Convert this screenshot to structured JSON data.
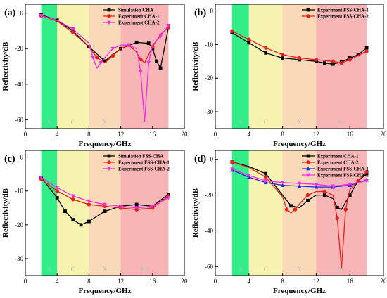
{
  "figure": {
    "band_colors": [
      "#33ee88",
      "#f6f2b0",
      "#f9d9b7",
      "#f7b5b5"
    ],
    "band_labels": [
      "S",
      "C",
      "X",
      "Ku"
    ],
    "chart_data": [
      {
        "type": "line",
        "panel_label": "(a)",
        "xlabel": "Frequency/GHz",
        "ylabel": "Reflectivity/dB",
        "xlim": [
          0,
          20
        ],
        "ylim": [
          -65,
          5
        ],
        "xticks": [
          0,
          4,
          8,
          12,
          16,
          20
        ],
        "yticks": [
          0,
          -20,
          -40,
          -60
        ],
        "bands": [
          [
            2,
            4
          ],
          [
            4,
            8
          ],
          [
            8,
            12
          ],
          [
            12,
            18
          ]
        ],
        "legend_position": "top-right",
        "grid": false,
        "series": [
          {
            "name": "Simulation CHA",
            "color": "#000000",
            "marker": "square",
            "x": [
              2,
              4,
              6,
              8,
              10,
              12,
              14,
              15.5,
              16,
              16.5,
              17,
              18
            ],
            "y": [
              -1,
              -4,
              -10,
              -19,
              -27,
              -20,
              -16.5,
              -17,
              -20,
              -27,
              -31,
              -8
            ]
          },
          {
            "name": "Experiment CHA-1",
            "color": "#e8201a",
            "marker": "circle",
            "x": [
              2,
              4,
              6,
              8,
              9,
              10,
              11,
              12,
              13,
              14,
              14.5,
              15,
              16,
              17,
              18
            ],
            "y": [
              -1.5,
              -4.5,
              -11,
              -19,
              -25,
              -28,
              -24,
              -20,
              -18,
              -22,
              -26,
              -28,
              -19,
              -12,
              -8
            ]
          },
          {
            "name": "Experiment CHA-2",
            "color": "#f22be8",
            "marker": "triangle-down",
            "x": [
              2,
              4,
              6,
              8,
              8.5,
              9,
              9.5,
              10,
              11,
              12,
              13,
              14,
              14.5,
              15,
              15.5,
              16,
              17,
              18
            ],
            "y": [
              -1.5,
              -4,
              -9,
              -17,
              -25,
              -31,
              -28,
              -25,
              -20,
              -18,
              -18,
              -20,
              -33,
              -61,
              -28,
              -18,
              -13,
              -7
            ]
          }
        ]
      },
      {
        "type": "line",
        "panel_label": "(b)",
        "xlabel": "Frequency/GHz",
        "ylabel": "Reflectivity/dB",
        "xlim": [
          0,
          20
        ],
        "ylim": [
          -35,
          2
        ],
        "xticks": [
          0,
          4,
          8,
          12,
          16,
          20
        ],
        "yticks": [
          0,
          -10,
          -20,
          -30
        ],
        "bands": [
          [
            2,
            4
          ],
          [
            4,
            8
          ],
          [
            8,
            12
          ],
          [
            12,
            18
          ]
        ],
        "legend_position": "top-right",
        "grid": false,
        "series": [
          {
            "name": "Experiment FSS-CHA-1",
            "color": "#000000",
            "marker": "square",
            "x": [
              2,
              4,
              6,
              8,
              10,
              12,
              13,
              14,
              15,
              16,
              17,
              18
            ],
            "y": [
              -6.5,
              -9.5,
              -12.5,
              -14,
              -14.5,
              -15,
              -15.5,
              -15.8,
              -15.2,
              -14,
              -13,
              -11
            ]
          },
          {
            "name": "Experiment FSS-CHA-2",
            "color": "#e8201a",
            "marker": "circle",
            "x": [
              2,
              4,
              6,
              8,
              10,
              12,
              14,
              15,
              16,
              18
            ],
            "y": [
              -6,
              -8.5,
              -11,
              -13,
              -14,
              -14.5,
              -15,
              -15.5,
              -14.5,
              -12
            ]
          }
        ]
      },
      {
        "type": "line",
        "panel_label": "(c)",
        "xlabel": "Frequency/GHz",
        "ylabel": "Reflectivity/dB",
        "xlim": [
          0,
          20
        ],
        "ylim": [
          -35,
          2
        ],
        "xticks": [
          0,
          4,
          8,
          12,
          16,
          20
        ],
        "yticks": [
          0,
          -10,
          -20,
          -30
        ],
        "bands": [
          [
            2,
            4
          ],
          [
            4,
            8
          ],
          [
            8,
            12
          ],
          [
            12,
            18
          ]
        ],
        "legend_position": "top-right",
        "grid": false,
        "series": [
          {
            "name": "Simulation FSS-CHA",
            "color": "#000000",
            "marker": "square",
            "x": [
              2,
              4,
              5,
              6,
              7,
              8,
              10,
              12,
              14,
              16,
              18
            ],
            "y": [
              -6,
              -12,
              -16,
              -18.5,
              -20,
              -19,
              -16,
              -14.5,
              -14,
              -14.5,
              -11
            ]
          },
          {
            "name": "Experiment FSS-CHA-1",
            "color": "#e8201a",
            "marker": "circle",
            "x": [
              2,
              4,
              6,
              8,
              10,
              12,
              14,
              16,
              18
            ],
            "y": [
              -6.5,
              -10,
              -12.5,
              -14,
              -14.5,
              -15,
              -15.5,
              -15,
              -11.5
            ]
          },
          {
            "name": "Experiment FSS-CHA-2",
            "color": "#f22be8",
            "marker": "triangle-down",
            "x": [
              2,
              4,
              6,
              8,
              10,
              12,
              14,
              16,
              18
            ],
            "y": [
              -6,
              -9,
              -11.5,
              -13,
              -14,
              -14.5,
              -15,
              -14.5,
              -12
            ]
          }
        ]
      },
      {
        "type": "line",
        "panel_label": "(d)",
        "xlabel": "Frequency/GHz",
        "ylabel": "Reflectivity/dB",
        "xlim": [
          0,
          20
        ],
        "ylim": [
          -65,
          5
        ],
        "xticks": [
          0,
          4,
          8,
          12,
          16,
          20
        ],
        "yticks": [
          0,
          -20,
          -40,
          -60
        ],
        "bands": [
          [
            2,
            4
          ],
          [
            4,
            8
          ],
          [
            8,
            12
          ],
          [
            12,
            18
          ]
        ],
        "legend_position": "top-right",
        "grid": false,
        "series": [
          {
            "name": "Experiment CHA-1",
            "color": "#000000",
            "marker": "square",
            "x": [
              2,
              4,
              6,
              8,
              9,
              10,
              11,
              12,
              13,
              14,
              14.5,
              15,
              16,
              17,
              18
            ],
            "y": [
              -1.5,
              -4,
              -8,
              -20,
              -26,
              -27,
              -23,
              -20,
              -20,
              -22,
              -27,
              -28,
              -20,
              -12,
              -8
            ]
          },
          {
            "name": "Experiment CHA-2",
            "color": "#e8201a",
            "marker": "circle",
            "x": [
              2,
              4,
              6,
              8,
              8.5,
              9,
              9.5,
              10,
              11,
              12,
              13,
              14,
              14.5,
              15,
              15.5,
              16,
              17,
              18
            ],
            "y": [
              -1.5,
              -4.5,
              -10,
              -21,
              -28,
              -30,
              -28,
              -25,
              -20,
              -18,
              -18,
              -20,
              -33,
              -61,
              -28,
              -17,
              -12,
              -7
            ]
          },
          {
            "name": "Experiment FSS-CHA-1",
            "color": "#2323e0",
            "marker": "triangle-up",
            "x": [
              2,
              4,
              6,
              8,
              10,
              12,
              14,
              16,
              18
            ],
            "y": [
              -6,
              -10,
              -13,
              -14.5,
              -15,
              -15.5,
              -15.5,
              -14.5,
              -11.5
            ]
          },
          {
            "name": "Experiment FSS-CHA-2",
            "color": "#f22be8",
            "marker": "triangle-down",
            "x": [
              2,
              4,
              6,
              8,
              10,
              12,
              14,
              16,
              18
            ],
            "y": [
              -5.5,
              -9,
              -12,
              -13,
              -13.5,
              -14,
              -15,
              -14,
              -12
            ]
          }
        ]
      }
    ]
  }
}
